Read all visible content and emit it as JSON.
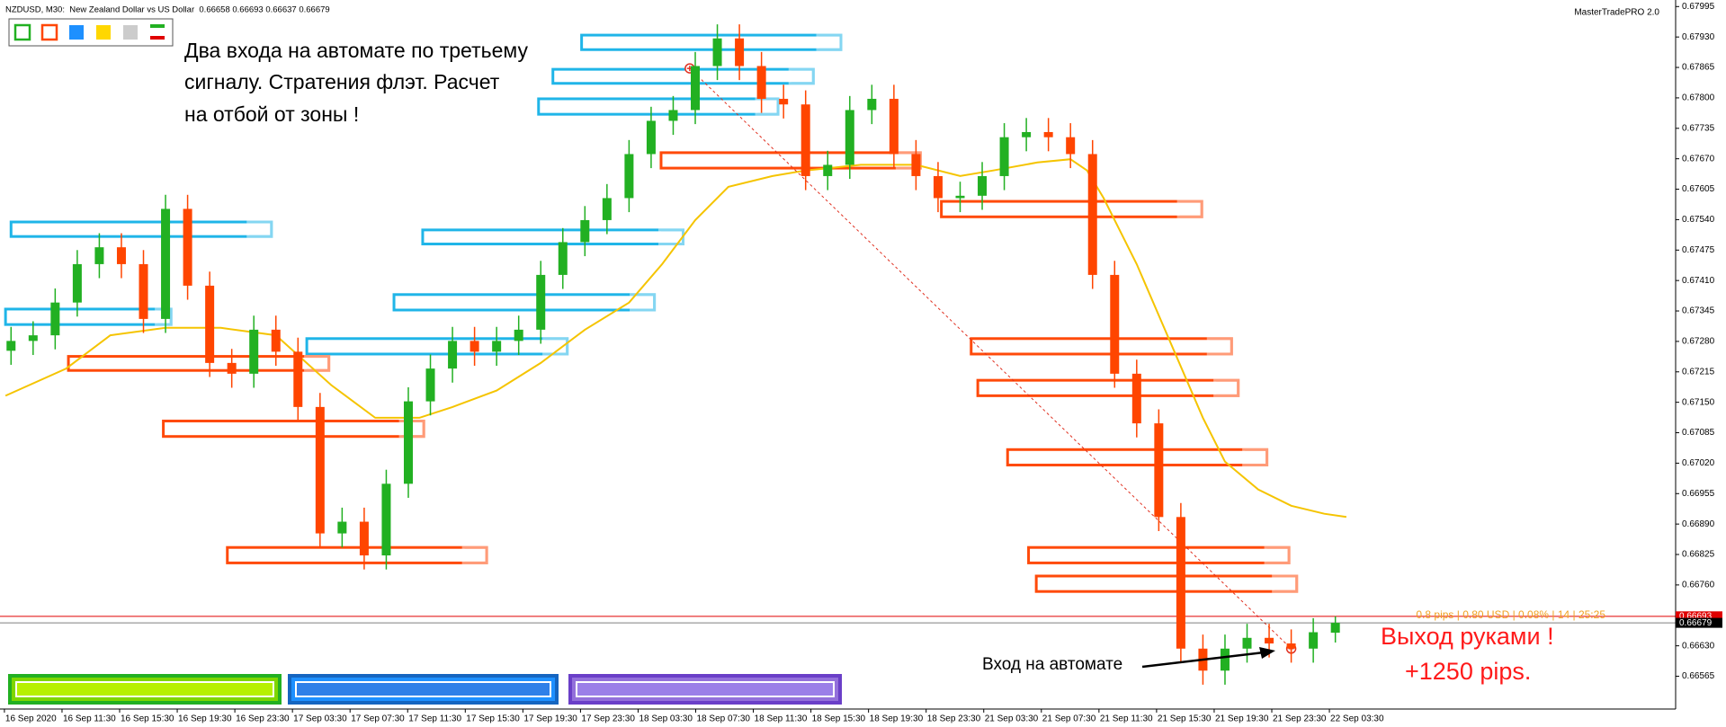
{
  "chart_data": {
    "type": "candlestick",
    "header": "NZDUSD, M30:  New Zealand Dollar vs US Dollar  0.66658 0.66693 0.66637 0.66679",
    "brand": "MasterTradePRO 2.0",
    "info": "0.8 pips | 0.80 USD | 0.08% | 14 | 25:25",
    "annotations": {
      "note": [
        "Два входа на автомате по третьему",
        "сигналу. Стратения флэт. Расчет",
        "на отбой от зоны !"
      ],
      "entry": "Вход на автомате",
      "exit": [
        "Выход руками !",
        "+1250 pips."
      ]
    },
    "time_labels": [
      "16 Sep 2020",
      "16 Sep 11:30",
      "16 Sep 15:30",
      "16 Sep 19:30",
      "16 Sep 23:30",
      "17 Sep 03:30",
      "17 Sep 07:30",
      "17 Sep 11:30",
      "17 Sep 15:30",
      "17 Sep 19:30",
      "17 Sep 23:30",
      "18 Sep 03:30",
      "18 Sep 07:30",
      "18 Sep 11:30",
      "18 Sep 15:30",
      "18 Sep 19:30",
      "18 Sep 23:30",
      "21 Sep 03:30",
      "21 Sep 07:30",
      "21 Sep 11:30",
      "21 Sep 15:30",
      "21 Sep 19:30",
      "21 Sep 23:30",
      "22 Sep 03:30"
    ],
    "ylim": [
      0.66495,
      0.68009
    ],
    "yticks": [
      0.66565,
      {
        "value": 0.6663,
        "label": "0.66630"
      },
      0.66695,
      {
        "value": 0.6676,
        "label": "0.66760"
      },
      0.66825,
      {
        "value": 0.6689,
        "label": "0.66890"
      },
      0.66955,
      {
        "value": 0.6702,
        "label": "0.67020"
      },
      0.67085,
      {
        "value": 0.6715,
        "label": "0.67150"
      },
      0.67215,
      {
        "value": 0.6728,
        "label": "0.67280"
      },
      0.67345,
      {
        "value": 0.6741,
        "label": "0.67410"
      },
      0.67475,
      {
        "value": 0.6754,
        "label": "0.67540"
      },
      0.67605,
      {
        "value": 0.6767,
        "label": "0.67670"
      },
      0.67735,
      {
        "value": 0.678,
        "label": "0.67800"
      },
      0.67865,
      {
        "value": 0.6793,
        "label": "0.67930"
      },
      0.67995
    ],
    "up_color": "#22b022",
    "down_color": "#ff4500",
    "candles": {
      "open": [
        0.6726,
        0.67281,
        0.67293,
        0.67363,
        0.67445,
        0.67481,
        0.67445,
        0.67328,
        0.67563,
        0.67399,
        0.67234,
        0.67211,
        0.67305,
        0.67258,
        0.6714,
        0.6687,
        0.66895,
        0.66823,
        0.66976,
        0.67152,
        0.67222,
        0.67281,
        0.67258,
        0.67281,
        0.67305,
        0.67422,
        0.67492,
        0.67539,
        0.67586,
        0.6768,
        0.67751,
        0.67774,
        0.67868,
        0.67927,
        0.67868,
        0.67798,
        0.67786,
        0.67633,
        0.67657,
        0.67774,
        0.67798,
        0.6768,
        0.67633,
        0.67586,
        0.67591,
        0.67633,
        0.67716,
        0.67727,
        0.67716,
        0.6768,
        0.67422,
        0.67211,
        0.67105,
        0.66905,
        0.66624,
        0.66577,
        0.66624,
        0.66647,
        0.66635,
        0.66624,
        0.66658
      ],
      "high": [
        0.67311,
        0.67323,
        0.67393,
        0.67475,
        0.67511,
        0.67511,
        0.67475,
        0.67593,
        0.67593,
        0.67429,
        0.67264,
        0.67335,
        0.67335,
        0.67288,
        0.6717,
        0.66925,
        0.66925,
        0.67006,
        0.67182,
        0.67252,
        0.67311,
        0.67311,
        0.67311,
        0.67335,
        0.67452,
        0.67522,
        0.67569,
        0.67616,
        0.6771,
        0.67781,
        0.67804,
        0.67898,
        0.67957,
        0.67957,
        0.67898,
        0.67828,
        0.67816,
        0.67687,
        0.67804,
        0.67828,
        0.67828,
        0.6771,
        0.67663,
        0.67621,
        0.67663,
        0.67746,
        0.67757,
        0.67757,
        0.67746,
        0.6771,
        0.67452,
        0.67241,
        0.67135,
        0.66935,
        0.66654,
        0.66654,
        0.66677,
        0.66677,
        0.66665,
        0.66689,
        0.66693
      ],
      "low": [
        0.6723,
        0.67251,
        0.67263,
        0.67333,
        0.67415,
        0.67415,
        0.67298,
        0.67298,
        0.67369,
        0.67204,
        0.67181,
        0.67181,
        0.67228,
        0.6711,
        0.6684,
        0.6684,
        0.66793,
        0.66793,
        0.66946,
        0.67122,
        0.67192,
        0.67228,
        0.67228,
        0.67251,
        0.67275,
        0.67392,
        0.67462,
        0.67509,
        0.67556,
        0.6765,
        0.67721,
        0.67744,
        0.67838,
        0.67838,
        0.67768,
        0.67756,
        0.67603,
        0.67603,
        0.67627,
        0.67744,
        0.6765,
        0.67603,
        0.67556,
        0.67556,
        0.67561,
        0.67603,
        0.67686,
        0.67686,
        0.6765,
        0.67392,
        0.67181,
        0.67075,
        0.66875,
        0.66594,
        0.66547,
        0.66547,
        0.66594,
        0.66605,
        0.66594,
        0.66594,
        0.66637
      ],
      "close": [
        0.67281,
        0.67293,
        0.67363,
        0.67445,
        0.67481,
        0.67445,
        0.67328,
        0.67563,
        0.67399,
        0.67234,
        0.67211,
        0.67305,
        0.67258,
        0.6714,
        0.6687,
        0.66895,
        0.66823,
        0.66976,
        0.67152,
        0.67222,
        0.67281,
        0.67258,
        0.67281,
        0.67305,
        0.67422,
        0.67492,
        0.67539,
        0.67586,
        0.6768,
        0.67751,
        0.67774,
        0.67868,
        0.67927,
        0.67868,
        0.67798,
        0.67786,
        0.67633,
        0.67657,
        0.67774,
        0.67798,
        0.6768,
        0.67633,
        0.67586,
        0.67591,
        0.67633,
        0.67716,
        0.67727,
        0.67716,
        0.6768,
        0.67422,
        0.67211,
        0.67105,
        0.66905,
        0.66624,
        0.66577,
        0.66624,
        0.66647,
        0.66635,
        0.66624,
        0.66659,
        0.66679
      ]
    },
    "zones": [
      {
        "start": 25.85,
        "end": 37.6,
        "low": 0.67903,
        "high": 0.67934,
        "color": "#1fb5e8"
      },
      {
        "start": 24.55,
        "end": 36.35,
        "low": 0.67831,
        "high": 0.67861,
        "color": "#1fb5e8"
      },
      {
        "start": 23.9,
        "end": 34.75,
        "low": 0.67765,
        "high": 0.67798,
        "color": "#1fb5e8"
      },
      {
        "start": 0,
        "end": 11.8,
        "low": 0.67504,
        "high": 0.67535,
        "color": "#1fb5e8"
      },
      {
        "start": 18.65,
        "end": 30.45,
        "low": 0.67488,
        "high": 0.67518,
        "color": "#1fb5e8"
      },
      {
        "start": 17.35,
        "end": 29.15,
        "low": 0.67347,
        "high": 0.6738,
        "color": "#1fb5e8"
      },
      {
        "start": -0.25,
        "end": 7.25,
        "low": 0.67316,
        "high": 0.67349,
        "color": "#1fb5e8"
      },
      {
        "start": 13.4,
        "end": 25.2,
        "low": 0.67253,
        "high": 0.67286,
        "color": "#1fb5e8"
      },
      {
        "start": 29.45,
        "end": 41.2,
        "low": 0.6765,
        "high": 0.67683,
        "color": "#ff4a0a"
      },
      {
        "start": 42.15,
        "end": 53.95,
        "low": 0.67546,
        "high": 0.67579,
        "color": "#ff4a0a"
      },
      {
        "start": 2.6,
        "end": 14.4,
        "low": 0.67218,
        "high": 0.67248,
        "color": "#ff4a0a"
      },
      {
        "start": 43.5,
        "end": 55.3,
        "low": 0.67253,
        "high": 0.67286,
        "color": "#ff4a0a"
      },
      {
        "start": 43.8,
        "end": 55.6,
        "low": 0.67164,
        "high": 0.67197,
        "color": "#ff4a0a"
      },
      {
        "start": 6.9,
        "end": 18.7,
        "low": 0.67077,
        "high": 0.6711,
        "color": "#ff4a0a"
      },
      {
        "start": 45.15,
        "end": 56.9,
        "low": 0.67016,
        "high": 0.67049,
        "color": "#ff4a0a"
      },
      {
        "start": 9.8,
        "end": 21.55,
        "low": 0.66807,
        "high": 0.6684,
        "color": "#ff4a0a"
      },
      {
        "start": 46.1,
        "end": 57.9,
        "low": 0.66807,
        "high": 0.6684,
        "color": "#ff4a0a"
      },
      {
        "start": 46.45,
        "end": 58.25,
        "low": 0.66746,
        "high": 0.66779,
        "color": "#ff4a0a"
      }
    ],
    "ma": {
      "color": "#f5c400",
      "x": [
        -0.25,
        2.5,
        4.5,
        7,
        9.5,
        12,
        14.5,
        16.5,
        18.5,
        20,
        22,
        24,
        26,
        28,
        29.5,
        31,
        32.5,
        34.5,
        36,
        38.5,
        41,
        43,
        44.5,
        46.5,
        48,
        48.75,
        49.5,
        51,
        52.5,
        54,
        55,
        56.5,
        58,
        59.5,
        60.5
      ],
      "values": [
        0.67164,
        0.67222,
        0.67293,
        0.67309,
        0.67309,
        0.67293,
        0.67187,
        0.67117,
        0.67117,
        0.6714,
        0.67175,
        0.67234,
        0.67305,
        0.67363,
        0.67445,
        0.67539,
        0.6761,
        0.67633,
        0.67645,
        0.67657,
        0.67657,
        0.67633,
        0.67645,
        0.67662,
        0.67669,
        0.67645,
        0.67586,
        0.67445,
        0.67281,
        0.67117,
        0.67023,
        0.66964,
        0.66929,
        0.66912,
        0.66905
      ]
    },
    "trendline": {
      "color": "#e03020",
      "x": [
        30.75,
        58
      ],
      "values": [
        0.67863,
        0.66624
      ]
    },
    "bid_line": {
      "value": 0.66693,
      "color": "#e00000"
    },
    "last_line": {
      "value": 0.66679,
      "color": "#000000"
    }
  }
}
